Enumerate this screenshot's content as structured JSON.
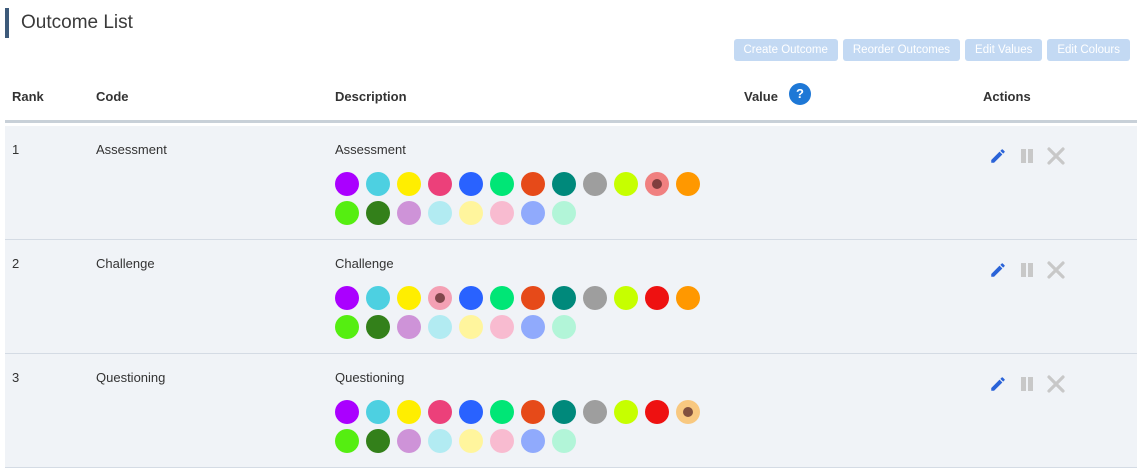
{
  "page": {
    "title": "Outcome List"
  },
  "toolbar": {
    "create_outcome": "Create Outcome",
    "reorder_outcomes": "Reorder Outcomes",
    "edit_values": "Edit Values",
    "edit_colours": "Edit Colours"
  },
  "table": {
    "headers": {
      "rank": "Rank",
      "code": "Code",
      "description": "Description",
      "value": "Value",
      "actions": "Actions"
    },
    "help_icon": {
      "name": "question-icon",
      "glyph": "?"
    },
    "rows": [
      {
        "rank": "1",
        "code": "Assessment",
        "description": "Assessment",
        "value": "",
        "selected_colour": "#f08080"
      },
      {
        "rank": "2",
        "code": "Challenge",
        "description": "Challenge",
        "value": "",
        "selected_colour": "#f4a0b4"
      },
      {
        "rank": "3",
        "code": "Questioning",
        "description": "Questioning",
        "value": "",
        "selected_colour": "#f8c880"
      }
    ]
  },
  "colour_palettes": [
    [
      "#aa00ff",
      "#4dd0e1",
      "#ffee00",
      "#ec407a",
      "#2962ff",
      "#00e676",
      "#e64a19",
      "#00897b",
      "#9e9e9e",
      "#c6ff00",
      "#f08080",
      "#ff9800",
      "#55ee11",
      "#33801a",
      "#ce93d8",
      "#b2ebf2",
      "#fff59d",
      "#f8bbd0",
      "#90aafc",
      "#b2f5d8"
    ],
    [
      "#aa00ff",
      "#4dd0e1",
      "#ffee00",
      "#f4a0b4",
      "#2962ff",
      "#00e676",
      "#e64a19",
      "#00897b",
      "#9e9e9e",
      "#c6ff00",
      "#ee1111",
      "#ff9800",
      "#55ee11",
      "#33801a",
      "#ce93d8",
      "#b2ebf2",
      "#fff59d",
      "#f8bbd0",
      "#90aafc",
      "#b2f5d8"
    ],
    [
      "#aa00ff",
      "#4dd0e1",
      "#ffee00",
      "#ec407a",
      "#2962ff",
      "#00e676",
      "#e64a19",
      "#00897b",
      "#9e9e9e",
      "#c6ff00",
      "#ee1111",
      "#f8c880",
      "#55ee11",
      "#33801a",
      "#ce93d8",
      "#b2ebf2",
      "#fff59d",
      "#f8bbd0",
      "#90aafc",
      "#b2f5d8"
    ]
  ],
  "selected_index": [
    10,
    3,
    11
  ],
  "icons": {
    "edit": "pencil-icon",
    "pause": "pause-icon",
    "delete": "close-icon"
  },
  "colors": {
    "accent": "#1e78d6",
    "edit_icon": "#2a63d8",
    "disabled_icon": "#c8c8c8",
    "toolbar_button": "#c3d9f3"
  }
}
